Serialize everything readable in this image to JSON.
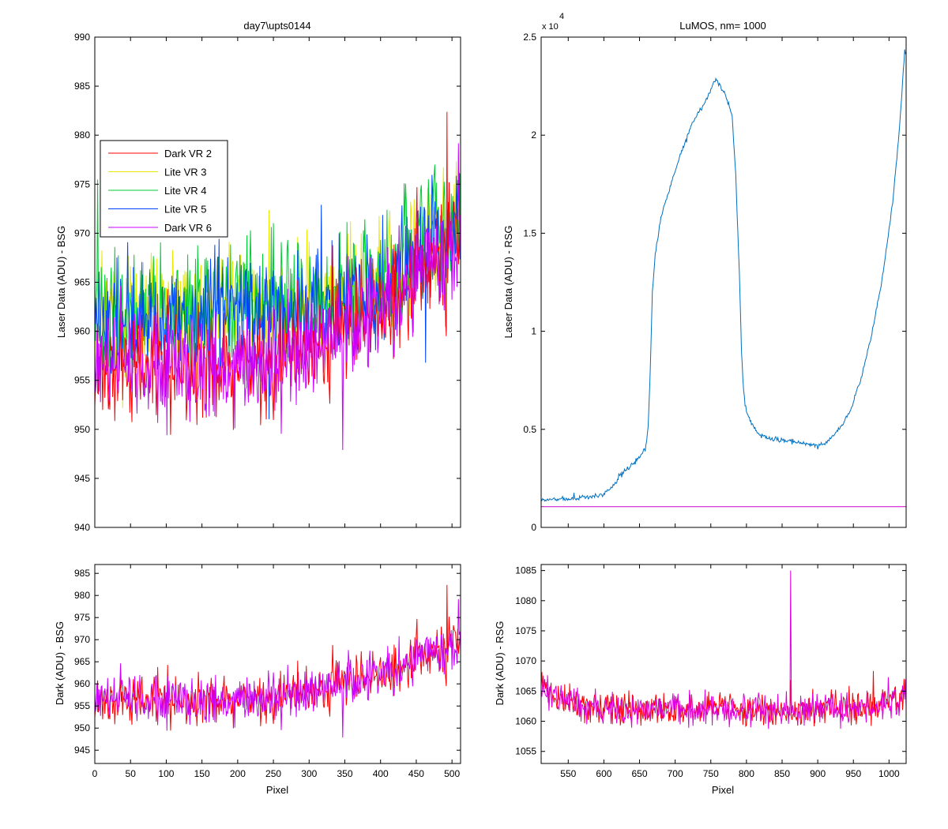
{
  "figure": {
    "background": "#ffffff",
    "axes_color": "#000000"
  },
  "chart_data": [
    {
      "type": "line",
      "title": "day7\\upts0144",
      "xlabel": "",
      "ylabel": "Laser Data (ADU) - BSG",
      "xlim": [
        0,
        512
      ],
      "ylim": [
        940,
        990
      ],
      "xticks": [
        0,
        50,
        100,
        150,
        200,
        250,
        300,
        350,
        400,
        450,
        500
      ],
      "xtick_labels_shown": false,
      "yticks": [
        940,
        945,
        950,
        955,
        960,
        965,
        970,
        975,
        980,
        985,
        990
      ],
      "legend": {
        "location": "upper-left",
        "entries": [
          {
            "label": "Dark VR 2",
            "color": "#ff0000"
          },
          {
            "label": "Lite VR 3",
            "color": "#e8e800"
          },
          {
            "label": "Lite VR 4",
            "color": "#00cc33"
          },
          {
            "label": "Lite VR 5",
            "color": "#0044ff"
          },
          {
            "label": "Dark VR 6",
            "color": "#cc00ff"
          }
        ]
      },
      "series": [
        {
          "name": "Lite VR 3",
          "color": "#e8e800",
          "x": [
            0,
            100,
            200,
            300,
            400,
            450,
            512
          ],
          "y": [
            962,
            962,
            963,
            963,
            965,
            968,
            972
          ],
          "noise": 5,
          "seed": 31
        },
        {
          "name": "Lite VR 4",
          "color": "#00cc33",
          "x": [
            0,
            100,
            200,
            300,
            400,
            450,
            512
          ],
          "y": [
            962,
            962,
            963,
            963,
            965,
            968,
            972
          ],
          "noise": 5,
          "seed": 41
        },
        {
          "name": "Lite VR 5",
          "color": "#0044ff",
          "x": [
            0,
            100,
            200,
            300,
            400,
            450,
            512
          ],
          "y": [
            961,
            961,
            962,
            962,
            964,
            967,
            971
          ],
          "noise": 5,
          "seed": 51
        },
        {
          "name": "Dark VR 2",
          "color": "#ff0000",
          "x": [
            0,
            100,
            200,
            300,
            400,
            450,
            512
          ],
          "y": [
            957,
            956,
            956,
            958,
            962,
            966,
            970
          ],
          "noise": 4.5,
          "seed": 21
        },
        {
          "name": "Dark VR 6",
          "color": "#cc00ff",
          "x": [
            0,
            100,
            200,
            300,
            400,
            450,
            512
          ],
          "y": [
            957,
            956,
            956,
            958,
            962,
            966,
            970
          ],
          "noise": 4.5,
          "seed": 61
        }
      ]
    },
    {
      "type": "line",
      "title": "LuMOS, nm= 1000",
      "xlabel": "",
      "ylabel": "Laser Data (ADU) - RSG",
      "xlim": [
        512,
        1024
      ],
      "ylim": [
        0,
        25000
      ],
      "xticks": [
        550,
        600,
        650,
        700,
        750,
        800,
        850,
        900,
        950,
        1000
      ],
      "xtick_labels_shown": false,
      "yticks": [
        0,
        5000,
        10000,
        15000,
        20000,
        25000
      ],
      "ytick_labels": [
        "0",
        "0.5",
        "1",
        "1.5",
        "2",
        "2.5"
      ],
      "y_exponent_label": "x 10",
      "y_exponent_power": "4",
      "series": [
        {
          "name": "signal",
          "color": "#0070c0",
          "x": [
            512,
            550,
            580,
            600,
            610,
            620,
            630,
            640,
            650,
            658,
            662,
            665,
            668,
            672,
            680,
            690,
            700,
            710,
            720,
            730,
            740,
            750,
            757,
            760,
            765,
            770,
            775,
            780,
            785,
            790,
            793,
            796,
            798,
            800,
            803,
            807,
            812,
            820,
            835,
            850,
            870,
            890,
            900,
            915,
            930,
            945,
            960,
            975,
            990,
            1005,
            1015,
            1022
          ],
          "y": [
            1400,
            1450,
            1550,
            1700,
            2000,
            2500,
            2900,
            3200,
            3600,
            4000,
            5000,
            8000,
            12000,
            14000,
            15800,
            17000,
            18200,
            19200,
            20300,
            21000,
            21600,
            22300,
            22900,
            22700,
            22400,
            22100,
            21600,
            21000,
            18000,
            13000,
            9000,
            7000,
            6300,
            5900,
            5600,
            5300,
            5000,
            4700,
            4500,
            4450,
            4350,
            4250,
            4150,
            4400,
            5000,
            5900,
            7500,
            9700,
            12600,
            16500,
            20500,
            24300
          ],
          "noise": 100,
          "seed": 7
        },
        {
          "name": "baseline",
          "color": "#cc00cc",
          "x": [
            512,
            1024
          ],
          "y": [
            1060,
            1060
          ],
          "noise": 0,
          "seed": 1
        }
      ]
    },
    {
      "type": "line",
      "title": "",
      "xlabel": "Pixel",
      "ylabel": "Dark (ADU) - BSG",
      "xlim": [
        0,
        512
      ],
      "ylim": [
        942,
        987
      ],
      "xticks": [
        0,
        50,
        100,
        150,
        200,
        250,
        300,
        350,
        400,
        450,
        500
      ],
      "yticks": [
        945,
        950,
        955,
        960,
        965,
        970,
        975,
        980,
        985
      ],
      "series": [
        {
          "name": "Dark VR 2",
          "color": "#ff0000",
          "x": [
            0,
            100,
            200,
            300,
            400,
            450,
            512
          ],
          "y": [
            957,
            956,
            956,
            958,
            962,
            966,
            970
          ],
          "noise": 4.5,
          "seed": 21
        },
        {
          "name": "Dark VR 6",
          "color": "#cc00ff",
          "x": [
            0,
            100,
            200,
            300,
            400,
            450,
            512
          ],
          "y": [
            957,
            956,
            956,
            958,
            962,
            966,
            970
          ],
          "noise": 4.5,
          "seed": 61
        }
      ]
    },
    {
      "type": "line",
      "title": "",
      "xlabel": "Pixel",
      "ylabel": "Dark (ADU) - RSG",
      "xlim": [
        512,
        1024
      ],
      "ylim": [
        1053,
        1086
      ],
      "xticks": [
        550,
        600,
        650,
        700,
        750,
        800,
        850,
        900,
        950,
        1000
      ],
      "yticks": [
        1055,
        1060,
        1065,
        1070,
        1075,
        1080,
        1085
      ],
      "series": [
        {
          "name": "red",
          "color": "#ff0000",
          "x": [
            512,
            530,
            560,
            600,
            700,
            800,
            900,
            960,
            1000,
            1024
          ],
          "y": [
            1066,
            1064,
            1063,
            1062,
            1062,
            1062,
            1062,
            1062,
            1063,
            1064
          ],
          "noise": 2.2,
          "seed": 71
        },
        {
          "name": "magenta",
          "color": "#dd00dd",
          "x": [
            512,
            530,
            560,
            600,
            700,
            800,
            900,
            960,
            1000,
            1024
          ],
          "y": [
            1066,
            1064,
            1063,
            1062,
            1062,
            1062,
            1062,
            1062,
            1063,
            1064
          ],
          "noise": 2.2,
          "seed": 81,
          "spike_x": 862,
          "spike_y": 1085
        }
      ]
    }
  ]
}
